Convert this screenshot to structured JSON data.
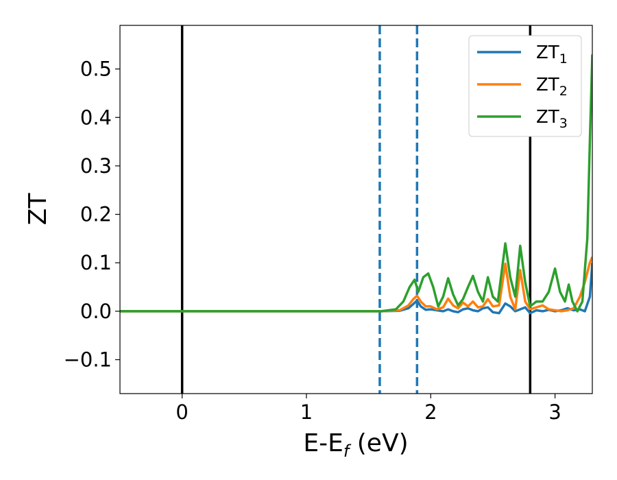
{
  "chart_data": {
    "type": "line",
    "xlabel": {
      "main": "E-E",
      "sub": "f",
      "unit": " (eV)"
    },
    "ylabel": "ZT",
    "xlim": [
      -0.5,
      3.3
    ],
    "ylim": [
      -0.17,
      0.59
    ],
    "x_ticks": [
      0,
      1,
      2,
      3
    ],
    "y_ticks": [
      -0.1,
      0.0,
      0.1,
      0.2,
      0.3,
      0.4,
      0.5
    ],
    "x_tick_labels": [
      "0",
      "1",
      "2",
      "3"
    ],
    "y_tick_labels": [
      "−0.1",
      "0.0",
      "0.1",
      "0.2",
      "0.3",
      "0.4",
      "0.5"
    ],
    "grid": false,
    "legend_position": "top-right",
    "vertical_lines": [
      {
        "x": 0.0,
        "style": "solid",
        "color": "#000000"
      },
      {
        "x": 2.8,
        "style": "solid",
        "color": "#000000"
      },
      {
        "x": 1.59,
        "style": "dashed",
        "color": "#1f77b4"
      },
      {
        "x": 1.89,
        "style": "dashed",
        "color": "#1f77b4"
      }
    ],
    "series": [
      {
        "name": "ZT",
        "sub": "1",
        "color": "#1f77b4",
        "points": [
          [
            -0.5,
            0
          ],
          [
            1.6,
            0
          ],
          [
            1.75,
            0.001
          ],
          [
            1.82,
            0.006
          ],
          [
            1.86,
            0.015
          ],
          [
            1.89,
            0.022
          ],
          [
            1.92,
            0.01
          ],
          [
            1.96,
            0.003
          ],
          [
            2.0,
            0.004
          ],
          [
            2.05,
            0.002
          ],
          [
            2.1,
            0.0
          ],
          [
            2.14,
            0.004
          ],
          [
            2.18,
            0.0
          ],
          [
            2.22,
            -0.002
          ],
          [
            2.26,
            0.004
          ],
          [
            2.3,
            0.006
          ],
          [
            2.34,
            0.002
          ],
          [
            2.38,
            0.0
          ],
          [
            2.42,
            0.006
          ],
          [
            2.46,
            0.008
          ],
          [
            2.5,
            -0.002
          ],
          [
            2.55,
            -0.004
          ],
          [
            2.6,
            0.016
          ],
          [
            2.64,
            0.01
          ],
          [
            2.68,
            0.0
          ],
          [
            2.72,
            0.004
          ],
          [
            2.76,
            0.008
          ],
          [
            2.8,
            -0.004
          ],
          [
            2.85,
            0.002
          ],
          [
            2.9,
            0.0
          ],
          [
            2.95,
            0.003
          ],
          [
            3.0,
            0.0
          ],
          [
            3.05,
            0.002
          ],
          [
            3.1,
            0.006
          ],
          [
            3.15,
            0.002
          ],
          [
            3.2,
            0.004
          ],
          [
            3.24,
            0.0
          ],
          [
            3.28,
            0.03
          ],
          [
            3.3,
            0.1
          ]
        ]
      },
      {
        "name": "ZT",
        "sub": "2",
        "color": "#ff7f0e",
        "points": [
          [
            -0.5,
            0
          ],
          [
            1.6,
            0
          ],
          [
            1.75,
            0.002
          ],
          [
            1.82,
            0.012
          ],
          [
            1.86,
            0.025
          ],
          [
            1.89,
            0.032
          ],
          [
            1.92,
            0.02
          ],
          [
            1.96,
            0.01
          ],
          [
            2.0,
            0.01
          ],
          [
            2.05,
            0.004
          ],
          [
            2.1,
            0.008
          ],
          [
            2.14,
            0.026
          ],
          [
            2.18,
            0.012
          ],
          [
            2.22,
            0.006
          ],
          [
            2.26,
            0.018
          ],
          [
            2.3,
            0.01
          ],
          [
            2.34,
            0.02
          ],
          [
            2.38,
            0.008
          ],
          [
            2.42,
            0.01
          ],
          [
            2.46,
            0.025
          ],
          [
            2.5,
            0.01
          ],
          [
            2.55,
            0.012
          ],
          [
            2.6,
            0.098
          ],
          [
            2.64,
            0.03
          ],
          [
            2.68,
            0.004
          ],
          [
            2.72,
            0.085
          ],
          [
            2.76,
            0.02
          ],
          [
            2.8,
            0.004
          ],
          [
            2.85,
            0.008
          ],
          [
            2.9,
            0.012
          ],
          [
            2.95,
            0.004
          ],
          [
            3.0,
            0.002
          ],
          [
            3.05,
            0.0
          ],
          [
            3.1,
            0.002
          ],
          [
            3.15,
            0.006
          ],
          [
            3.2,
            0.03
          ],
          [
            3.24,
            0.06
          ],
          [
            3.28,
            0.1
          ],
          [
            3.3,
            0.112
          ]
        ]
      },
      {
        "name": "ZT",
        "sub": "3",
        "color": "#2ca02c",
        "points": [
          [
            -0.5,
            0
          ],
          [
            1.6,
            0
          ],
          [
            1.72,
            0.004
          ],
          [
            1.78,
            0.02
          ],
          [
            1.83,
            0.05
          ],
          [
            1.87,
            0.065
          ],
          [
            1.9,
            0.04
          ],
          [
            1.94,
            0.07
          ],
          [
            1.98,
            0.078
          ],
          [
            2.02,
            0.05
          ],
          [
            2.06,
            0.01
          ],
          [
            2.1,
            0.03
          ],
          [
            2.14,
            0.068
          ],
          [
            2.18,
            0.035
          ],
          [
            2.22,
            0.012
          ],
          [
            2.26,
            0.025
          ],
          [
            2.3,
            0.05
          ],
          [
            2.34,
            0.073
          ],
          [
            2.38,
            0.04
          ],
          [
            2.42,
            0.02
          ],
          [
            2.46,
            0.07
          ],
          [
            2.5,
            0.03
          ],
          [
            2.54,
            0.02
          ],
          [
            2.6,
            0.14
          ],
          [
            2.64,
            0.07
          ],
          [
            2.68,
            0.03
          ],
          [
            2.72,
            0.135
          ],
          [
            2.76,
            0.06
          ],
          [
            2.8,
            0.01
          ],
          [
            2.85,
            0.02
          ],
          [
            2.9,
            0.02
          ],
          [
            2.95,
            0.04
          ],
          [
            3.0,
            0.088
          ],
          [
            3.04,
            0.04
          ],
          [
            3.08,
            0.02
          ],
          [
            3.11,
            0.055
          ],
          [
            3.14,
            0.02
          ],
          [
            3.18,
            0.0
          ],
          [
            3.22,
            0.02
          ],
          [
            3.26,
            0.15
          ],
          [
            3.28,
            0.35
          ],
          [
            3.3,
            0.53
          ]
        ]
      }
    ]
  }
}
